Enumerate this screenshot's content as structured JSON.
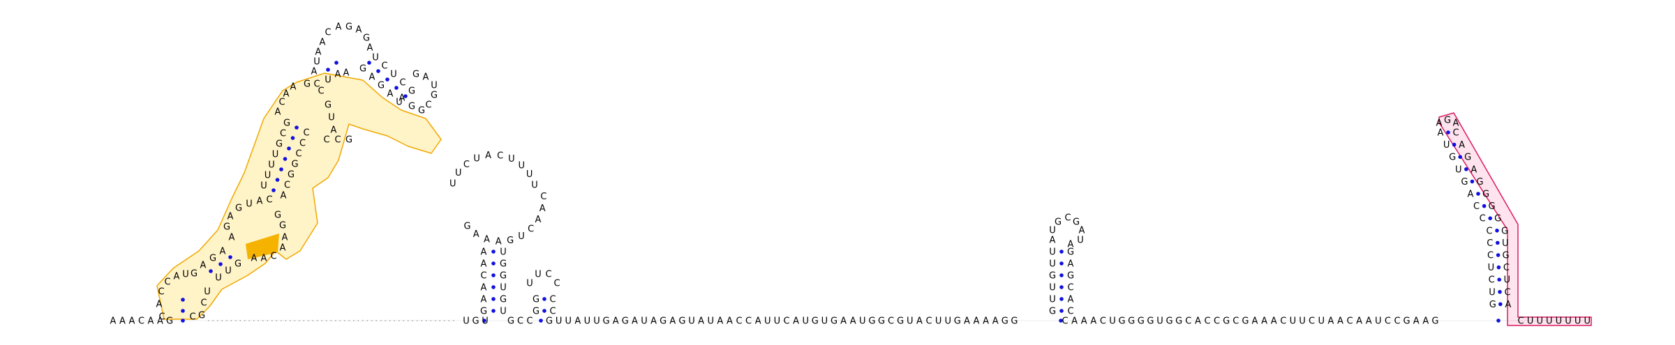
{
  "diagram": {
    "type": "rna-secondary-structure",
    "colors": {
      "base_pair": "#1010e0",
      "highlight_orange_fill": "#fff3c8",
      "highlight_orange_stroke": "#f0a800",
      "highlight_orange_solid": "#f5b300",
      "highlight_pink_fill": "#ffe3ee",
      "highlight_pink_stroke": "#d81b60"
    },
    "backbone": {
      "leader_5prime": "A·A·A·C·A·A·G",
      "trailer_3prime": "C·U·U·U·U·U·U·U",
      "segment_a": "U·G·U",
      "segment_b": "G·C·C",
      "segment_c": "G·U·U·A·U·U·G·A·G·A·U·A·G·A·G·U·A·U·A·A·C·C·A·U·U·C·A·U·G·U·G·A·A·U·G·G·C·G·U·A·C·U·U·G·A·A·A·A·G·G",
      "segment_d": "C·A·A·A·C·U·G·G·G·G·U·G·G·C·A·C·C·G·C·G·A·A·A·C·U·U·C·U·A·A·C·A·A·U·C·C·G·A·A·G"
    },
    "hairpin_1_loop": "U·U·C·U·A·C·U·U·U·U·C·A·A·C·U·G·A·A·A·G",
    "hairpin_2_loop": "U·U·C·C",
    "hairpin_3_loop": "A·U·G·C·G·A·U·A",
    "terminator_loop": "A·G·A"
  }
}
